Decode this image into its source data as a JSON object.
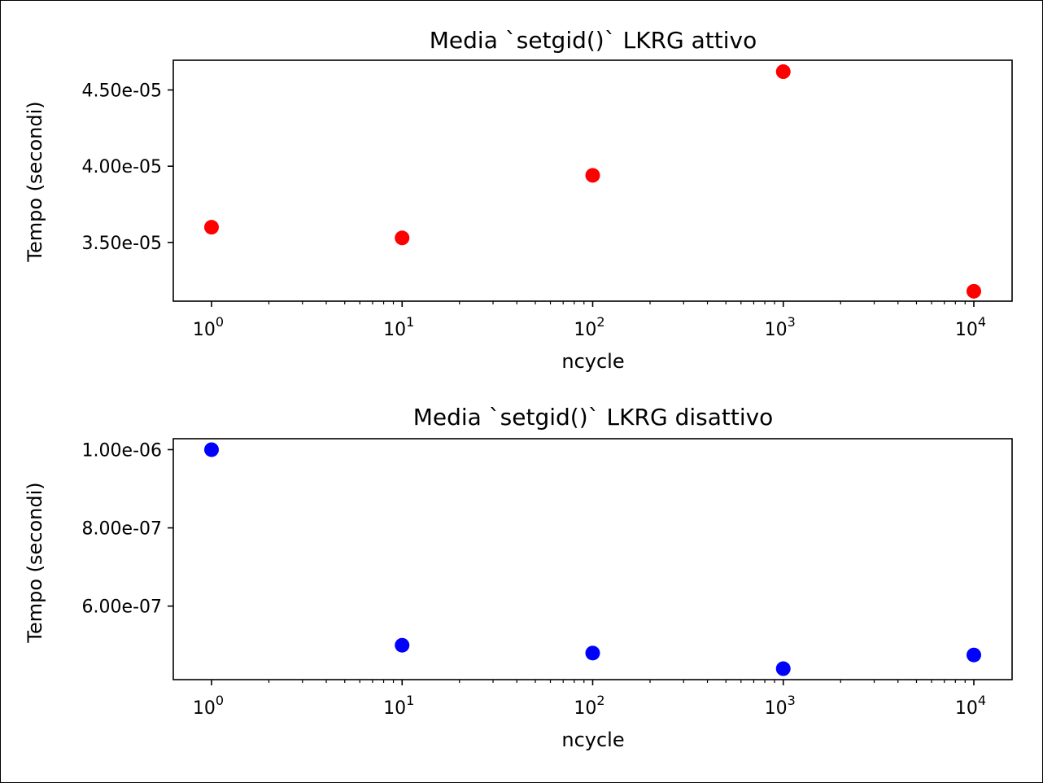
{
  "chart_data": [
    {
      "type": "scatter",
      "title": "Media `setgid()` LKRG attivo",
      "xlabel": "ncycle",
      "ylabel": "Tempo (secondi)",
      "xscale": "log",
      "x": [
        1,
        10,
        100,
        1000,
        10000
      ],
      "x_ticks": [
        {
          "base": "10",
          "exp": "0"
        },
        {
          "base": "10",
          "exp": "1"
        },
        {
          "base": "10",
          "exp": "2"
        },
        {
          "base": "10",
          "exp": "3"
        },
        {
          "base": "10",
          "exp": "4"
        }
      ],
      "y_ticks": [
        3.5e-05,
        4e-05,
        4.5e-05
      ],
      "y_tick_labels": [
        "3.50e-05",
        "4.00e-05",
        "4.50e-05"
      ],
      "ylim": [
        3.115e-05,
        4.695e-05
      ],
      "series": [
        {
          "color": "#ff0000",
          "values": [
            3.6e-05,
            3.53e-05,
            3.94e-05,
            4.62e-05,
            3.18e-05
          ]
        }
      ],
      "grid": false
    },
    {
      "type": "scatter",
      "title": "Media `setgid()` LKRG disattivo",
      "xlabel": "ncycle",
      "ylabel": "Tempo (secondi)",
      "xscale": "log",
      "x": [
        1,
        10,
        100,
        1000,
        10000
      ],
      "x_ticks": [
        {
          "base": "10",
          "exp": "0"
        },
        {
          "base": "10",
          "exp": "1"
        },
        {
          "base": "10",
          "exp": "2"
        },
        {
          "base": "10",
          "exp": "3"
        },
        {
          "base": "10",
          "exp": "4"
        }
      ],
      "y_ticks": [
        6e-07,
        8e-07,
        1e-06
      ],
      "y_tick_labels": [
        "6.00e-07",
        "8.00e-07",
        "1.00e-06"
      ],
      "ylim": [
        4.12e-07,
        1.028e-06
      ],
      "series": [
        {
          "color": "#0000ff",
          "values": [
            1e-06,
            5e-07,
            4.8e-07,
            4.4e-07,
            4.75e-07
          ]
        }
      ],
      "grid": false
    }
  ]
}
